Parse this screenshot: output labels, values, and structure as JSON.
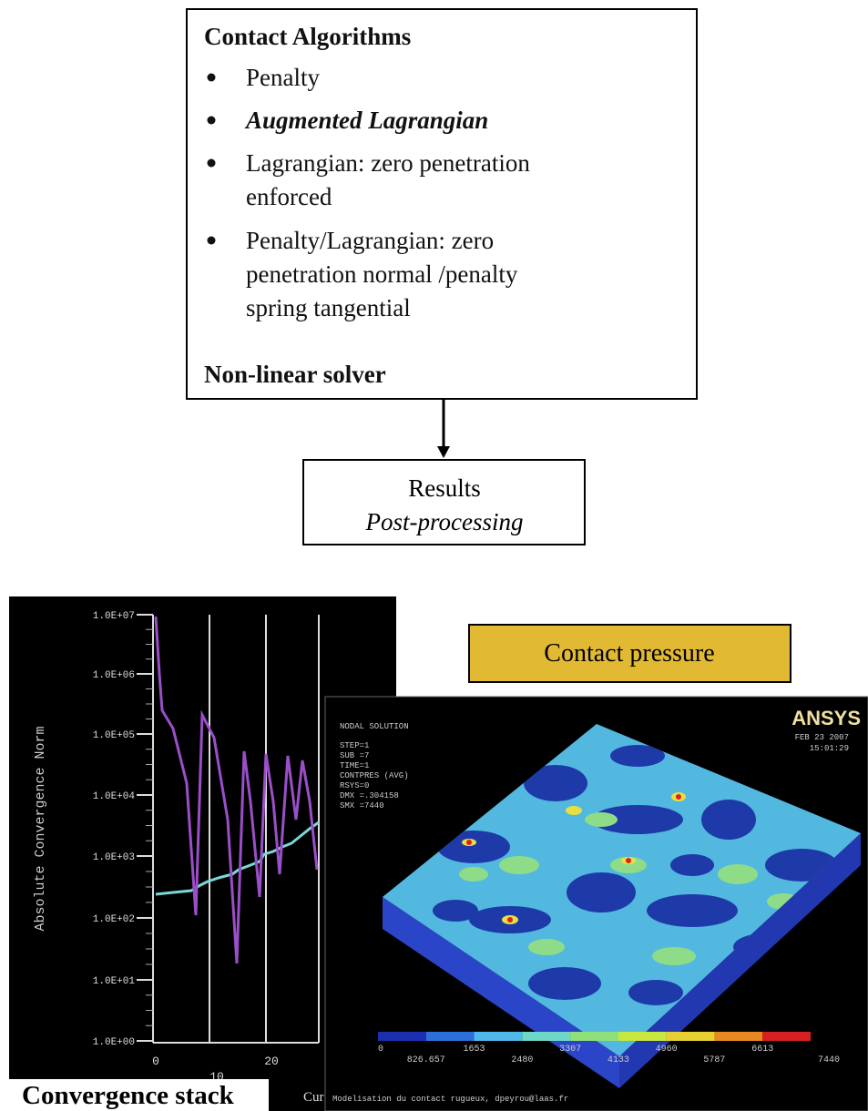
{
  "algorithms_box": {
    "title": "Contact Algorithms",
    "items": [
      [
        "Penalty"
      ],
      [
        "Augmented Lagrangian"
      ],
      [
        "Lagrangian: zero penetration",
        "enforced"
      ],
      [
        "Penalty/Lagrangian: zero",
        "penetration normal /penalty",
        "spring tangential"
      ]
    ],
    "footer": "Non-linear solver"
  },
  "results_box": {
    "title": "Results",
    "subtitle": "Post-processing"
  },
  "convergence_plot": {
    "y_axis_label": "Absolute Convergence Norm",
    "y_tick_labels": [
      "1.0E+07",
      "1.0E+06",
      "1.0E+05",
      "1.0E+04",
      "1.0E+03",
      "1.0E+02",
      "1.0E+01",
      "1.0E+00"
    ],
    "x_tick_labels": [
      "0",
      "10",
      "20"
    ],
    "cut_label": "Cur",
    "caption": "Convergence stack"
  },
  "contact_pressure_label": "Contact pressure",
  "ansys_panel": {
    "logo": "ANSYS",
    "header": [
      "NODAL SOLUTION",
      "STEP=1",
      "SUB =7",
      "TIME=1",
      "CONTPRES (AVG)",
      "RSYS=0",
      "DMX =.304158",
      "SMX =7440"
    ],
    "date": "FEB 23 2007",
    "time": "15:01:29",
    "legend_labels": [
      "0",
      "826.657",
      "1653",
      "2480",
      "3307",
      "4133",
      "4960",
      "5787",
      "6613",
      "7440"
    ],
    "footer": "Modelisation du contact rugueux, dpeyrou@laas.fr"
  }
}
